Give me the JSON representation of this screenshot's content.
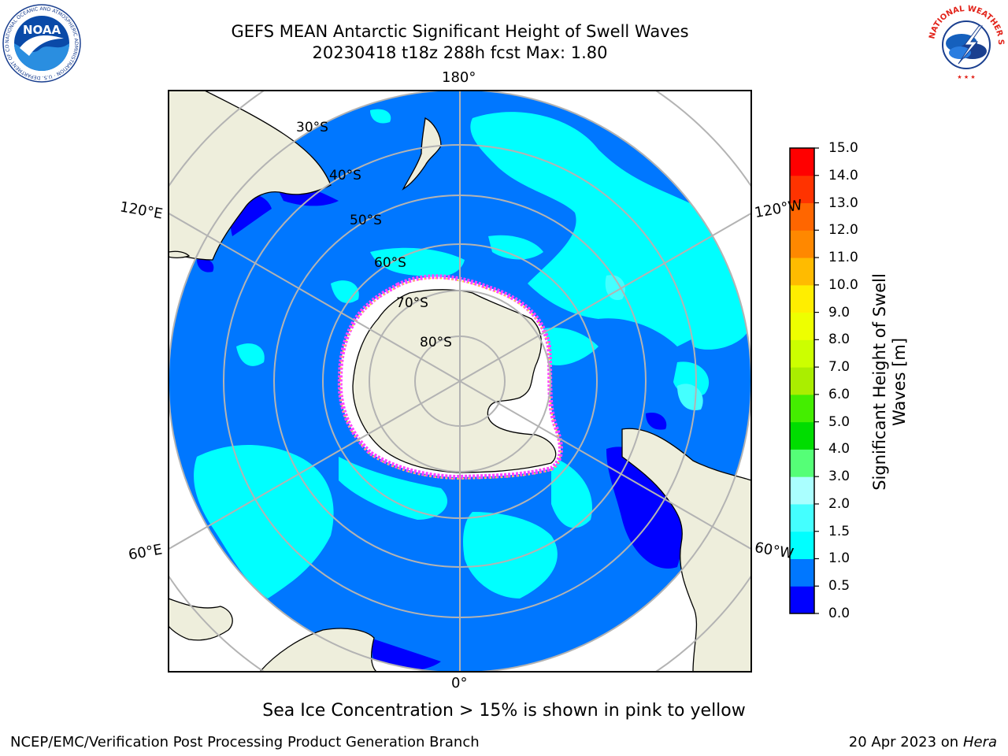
{
  "header": {
    "title_line1": "GEFS MEAN Antarctic Significant Height of Swell Waves",
    "title_line2": "20230418 t18z 288h fcst   Max: 1.80"
  },
  "map": {
    "projection": "south-polar-stereographic",
    "longitude_labels": {
      "top": "180°",
      "bottom": "0°",
      "upper_left": "120°E",
      "upper_right": "120°W",
      "lower_left": "60°E",
      "lower_right": "60°W"
    },
    "latitude_labels": [
      "30°S",
      "40°S",
      "50°S",
      "60°S",
      "70°S",
      "80°S"
    ],
    "colors": {
      "ocean_main": "#0077ff",
      "ocean_light": "#00ffff",
      "ocean_low": "#0000ff",
      "land": "#eeeedc",
      "sea_ice_pink": "#ff44ff",
      "sea_ice_yellow": "#ffdd33",
      "grid": "#b3b3b3"
    }
  },
  "colorbar": {
    "label": "Significant Height of Swell Waves [m]",
    "label_line1": "Significant Height of Swell",
    "label_line2": "Waves [m]",
    "ticks": [
      "0.0",
      "0.5",
      "1.0",
      "1.5",
      "2.0",
      "3.0",
      "4.0",
      "5.0",
      "6.0",
      "7.0",
      "8.0",
      "9.0",
      "10.0",
      "11.0",
      "12.0",
      "13.0",
      "14.0",
      "15.0"
    ],
    "colors": [
      "#0000ff",
      "#0077ff",
      "#00ffff",
      "#44ffff",
      "#aaffff",
      "#55ff77",
      "#00dd00",
      "#44ee00",
      "#aaee00",
      "#ccff00",
      "#eeff00",
      "#ffee00",
      "#ffbb00",
      "#ff8800",
      "#ff6600",
      "#ff3300",
      "#ff0000"
    ]
  },
  "caption": "Sea Ice Concentration > 15% is shown in pink to yellow",
  "footer": {
    "left": "NCEP/EMC/Verification Post Processing Product Generation Branch",
    "date": "20 Apr 2023 on ",
    "machine": "Hera"
  },
  "logos": {
    "noaa_text": "NOAA",
    "noaa_ring_text": "NATIONAL OCEANIC AND ATMOSPHERIC ADMINISTRATION · U.S. DEPARTMENT OF COMMERCE",
    "nws_ring_text": "NATIONAL WEATHER SERVICE"
  }
}
